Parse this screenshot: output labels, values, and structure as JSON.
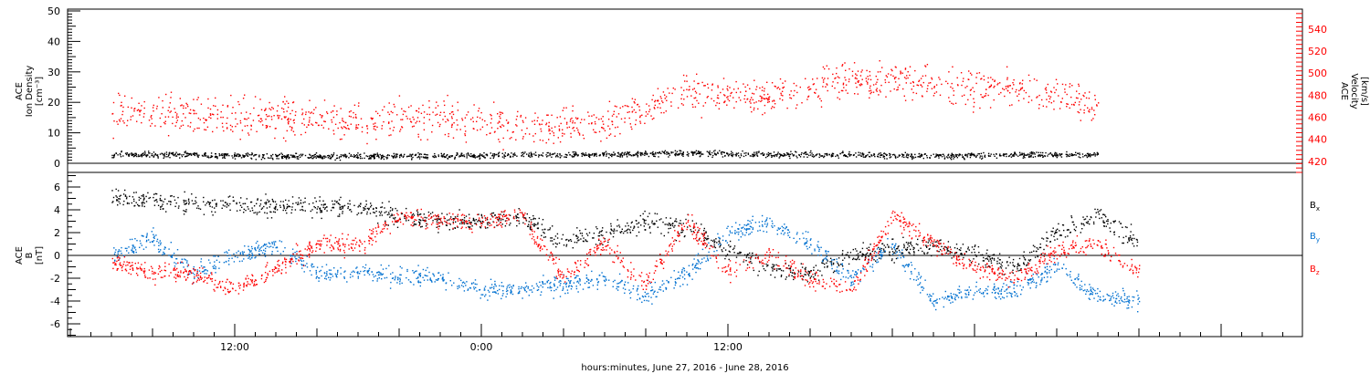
{
  "chart_data": [
    {
      "type": "scatter",
      "panel": "top",
      "ylabel_left": [
        "ACE",
        "Ion Density",
        "[cm⁻³]"
      ],
      "ylabel_right": [
        "ACE",
        "Velocity",
        "[km/s]"
      ],
      "ylim_left": [
        0,
        52
      ],
      "yticks_left": [
        "0",
        "10",
        "20",
        "30",
        "40",
        "50"
      ],
      "ylim_right": [
        410,
        558
      ],
      "yticks_right": [
        "420",
        "440",
        "460",
        "480",
        "500",
        "520",
        "540"
      ],
      "grid": false,
      "x_hours_after_0600_june27": [
        0,
        4,
        8,
        12,
        16,
        20,
        24,
        28,
        32,
        36,
        40,
        44,
        48
      ],
      "series": [
        {
          "name": "",
          "axis": "left",
          "color": "#000000",
          "values": [
            3,
            3,
            2.5,
            2.5,
            2.5,
            3,
            3,
            3.5,
            3,
            3,
            2.5,
            3,
            3
          ]
        },
        {
          "name": "",
          "axis": "right",
          "color": "#ff0000",
          "values": [
            465,
            462,
            460,
            458,
            462,
            452,
            455,
            485,
            478,
            495,
            490,
            485,
            470
          ]
        }
      ]
    },
    {
      "type": "scatter",
      "panel": "bottom",
      "ylabel_left": [
        "ACE",
        "B",
        "[nT]"
      ],
      "ylim": [
        -7.2,
        7.2
      ],
      "yticks": [
        "-6",
        "-4",
        "-2",
        "0",
        "2",
        "4",
        "6"
      ],
      "grid": false,
      "x_hours_after_0600_june27": [
        0,
        2,
        4,
        6,
        8,
        10,
        12,
        14,
        16,
        18,
        20,
        22,
        24,
        26,
        28,
        30,
        32,
        34,
        36,
        38,
        40,
        42,
        44,
        46,
        48,
        50
      ],
      "series": [
        {
          "name": "Bx",
          "color": "#000000",
          "values": [
            5,
            4.8,
            4.6,
            4.4,
            4.3,
            4.3,
            4.3,
            3.5,
            3,
            3.2,
            3.5,
            1,
            2,
            3,
            2.5,
            0.5,
            -1,
            -1.5,
            0,
            0.5,
            1,
            0,
            -1,
            2,
            3.5,
            1
          ]
        },
        {
          "name": "By",
          "color": "#0070d0",
          "values": [
            0,
            1.5,
            -1.5,
            0,
            1,
            -1.5,
            -1.5,
            -1.8,
            -2,
            -3,
            -3,
            -2.5,
            -2,
            -3.5,
            -1.5,
            2,
            3,
            1,
            -2,
            1,
            -4,
            -3,
            -3,
            -1,
            -3.5,
            -4
          ]
        },
        {
          "name": "Bz",
          "color": "#ff0000",
          "values": [
            -0.5,
            -1.5,
            -1.5,
            -3,
            -1,
            1,
            1,
            3.5,
            3,
            3,
            3.5,
            -2,
            1,
            -2.5,
            3,
            -1.5,
            0,
            -2,
            -3,
            3.5,
            1,
            -1,
            -2,
            0.5,
            1,
            -1.5
          ]
        }
      ]
    }
  ],
  "xaxis": {
    "ticks": [
      "12:00",
      "0:00",
      "12:00"
    ],
    "xlabel": "hours:minutes, June 27, 2016 - June 28, 2016"
  },
  "legend": {
    "bx": {
      "main": "B",
      "sub": "x"
    },
    "by": {
      "main": "B",
      "sub": "y"
    },
    "bz": {
      "main": "B",
      "sub": "z"
    }
  },
  "colors": {
    "black": "#000000",
    "blue": "#0070d0",
    "red": "#ff0000"
  }
}
